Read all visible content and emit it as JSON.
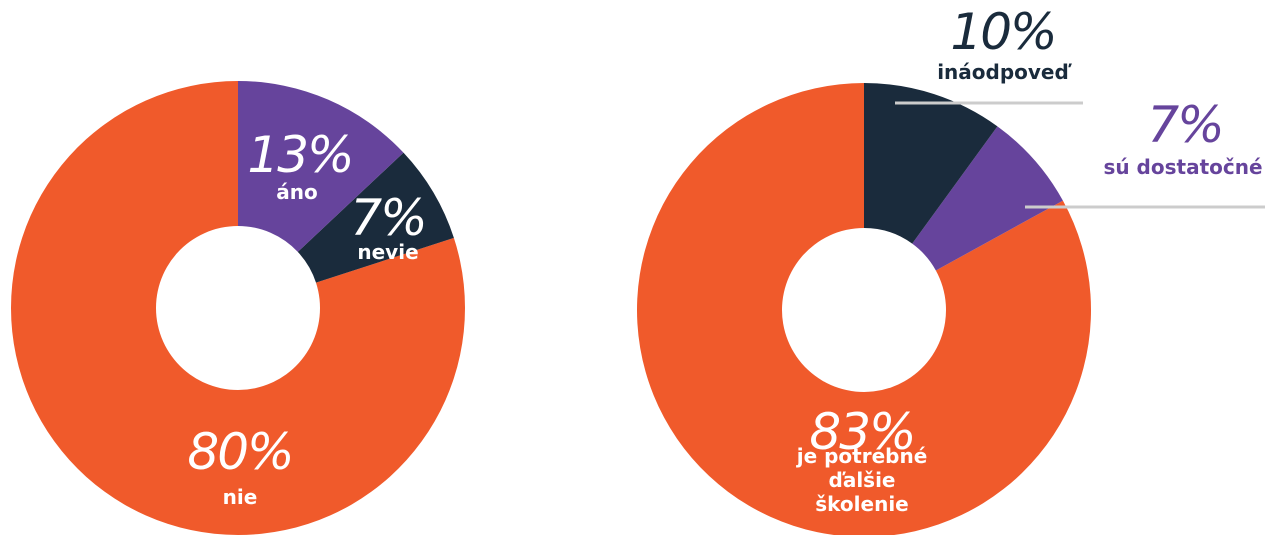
{
  "chart_data": [
    {
      "type": "donut",
      "categories": [
        "áno",
        "nevie",
        "nie"
      ],
      "values": [
        13,
        7,
        80
      ],
      "value_labels": [
        "13%",
        "7%",
        "80%"
      ],
      "colors": [
        "#66449c",
        "#1a2b3c",
        "#f05a2b"
      ]
    },
    {
      "type": "donut",
      "categories": [
        "ináodpoveď",
        "sú dostatočné",
        "je potrebné ďalšie školenie"
      ],
      "values": [
        10,
        7,
        83
      ],
      "value_labels": [
        "10%",
        "7%",
        "83%"
      ],
      "colors": [
        "#1a2b3c",
        "#66449c",
        "#f05a2b"
      ]
    }
  ]
}
